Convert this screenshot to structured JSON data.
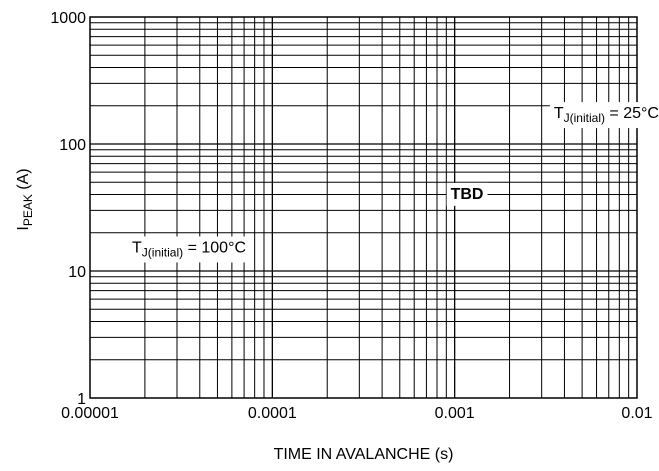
{
  "chart_data": {
    "type": "line",
    "title": "",
    "xlabel": "TIME IN AVALANCHE (s)",
    "ylabel": {
      "main": "I",
      "sub": "PEAK",
      "unit": " (A)"
    },
    "x_scale": "log",
    "y_scale": "log",
    "xlim": [
      1e-05,
      0.01
    ],
    "ylim": [
      1,
      1000
    ],
    "x_ticks": [
      {
        "value": 1e-05,
        "label": "0.00001"
      },
      {
        "value": 0.0001,
        "label": "0.0001"
      },
      {
        "value": 0.001,
        "label": "0.001"
      },
      {
        "value": 0.01,
        "label": "0.01"
      }
    ],
    "y_ticks": [
      {
        "value": 1,
        "label": "1"
      },
      {
        "value": 10,
        "label": "10"
      },
      {
        "value": 100,
        "label": "100"
      },
      {
        "value": 1000,
        "label": "1000"
      }
    ],
    "grid": true,
    "minor_grid": true,
    "x_minor_multipliers": [
      2,
      3,
      4,
      5,
      6,
      7,
      8,
      9
    ],
    "y_minor_multipliers": [
      2,
      3,
      4,
      5,
      6,
      7,
      8,
      9
    ],
    "series": [],
    "annotations": [
      {
        "id": "tj25",
        "prefix": "T",
        "sub": "J(initial)",
        "suffix": " = 25°C",
        "x": 0.0035,
        "y": 160
      },
      {
        "id": "tbd",
        "text": "TBD",
        "x": 0.00095,
        "y": 37
      },
      {
        "id": "tj100",
        "prefix": "T",
        "sub": "J(initial)",
        "suffix": " = 100°C",
        "x": 1.7e-05,
        "y": 14
      }
    ]
  }
}
